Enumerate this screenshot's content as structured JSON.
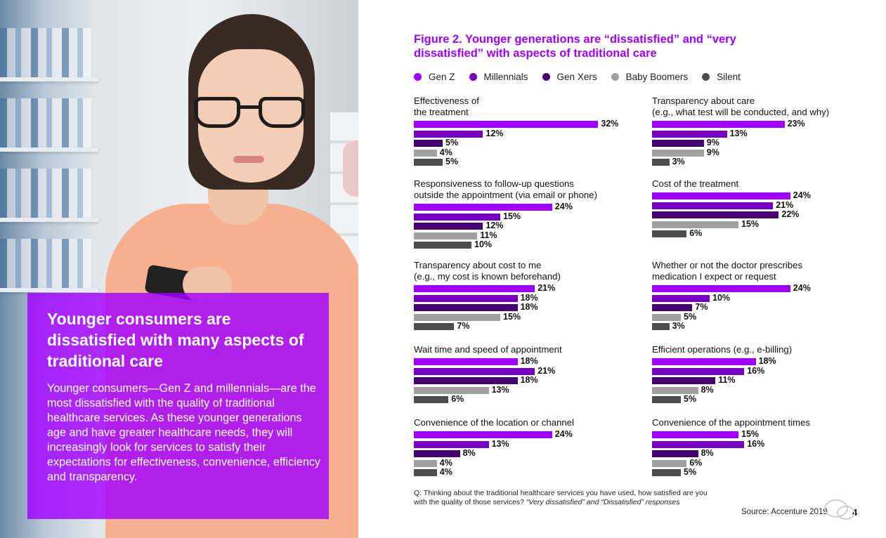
{
  "left_panel": {
    "headline": "Younger consumers are dissatisfied with many aspects of traditional care",
    "body": "Younger consumers—Gen Z and millennials—are the most dissatisfied with the quality of traditional healthcare services. As these younger generations age and have greater healthcare needs, they will increasingly look for services to satisfy their expectations for effectiveness, convenience, efficiency and transparency."
  },
  "colors": {
    "gen_z": "#a100ff",
    "millennials": "#7500c0",
    "gen_xers": "#460073",
    "baby_boomers": "#a0a0a0",
    "silent": "#4d4d4d",
    "purple_box": "#a100ff"
  },
  "chart_data": {
    "type": "bar",
    "title": "Figure 2. Younger generations are “dissatisfied” and “very dissatisfied” with aspects of traditional care",
    "legend": [
      "Gen Z",
      "Millennials",
      "Gen Xers",
      "Baby Boomers",
      "Silent"
    ],
    "value_suffix": "%",
    "panels": [
      {
        "title": "Effectiveness of\nthe treatment",
        "values": [
          32,
          12,
          5,
          4,
          5
        ]
      },
      {
        "title": "Transparency about care\n(e.g., what test will be conducted, and why)",
        "values": [
          23,
          13,
          9,
          9,
          3
        ]
      },
      {
        "title": "Responsiveness to follow-up questions\noutside the appointment (via email or phone)",
        "values": [
          24,
          15,
          12,
          11,
          10
        ]
      },
      {
        "title": "Cost of the treatment",
        "values": [
          24,
          21,
          22,
          15,
          6
        ]
      },
      {
        "title": "Transparency about cost to me\n(e.g., my cost is known beforehand)",
        "values": [
          21,
          18,
          18,
          15,
          7
        ]
      },
      {
        "title": "Whether or not the doctor prescribes\nmedication I expect or request",
        "values": [
          24,
          10,
          7,
          5,
          3
        ]
      },
      {
        "title": "Wait time and speed of appointment",
        "values": [
          18,
          21,
          18,
          13,
          6
        ]
      },
      {
        "title": "Efficient operations (e.g., e-billing)",
        "values": [
          18,
          16,
          11,
          8,
          5
        ]
      },
      {
        "title": "Convenience of the location or channel",
        "values": [
          24,
          13,
          8,
          4,
          4
        ]
      },
      {
        "title": "Convenience of the appointment times",
        "values": [
          15,
          16,
          8,
          6,
          5
        ]
      }
    ]
  },
  "footer": {
    "question_plain": "Q: Thinking about the traditional healthcare services you have used, how satisfied are you with the quality of those services?",
    "question_italic": "“Very dissatisfied” and “Dissatisfied” responses",
    "source": "Source: Accenture 2019",
    "page_number": "4"
  }
}
